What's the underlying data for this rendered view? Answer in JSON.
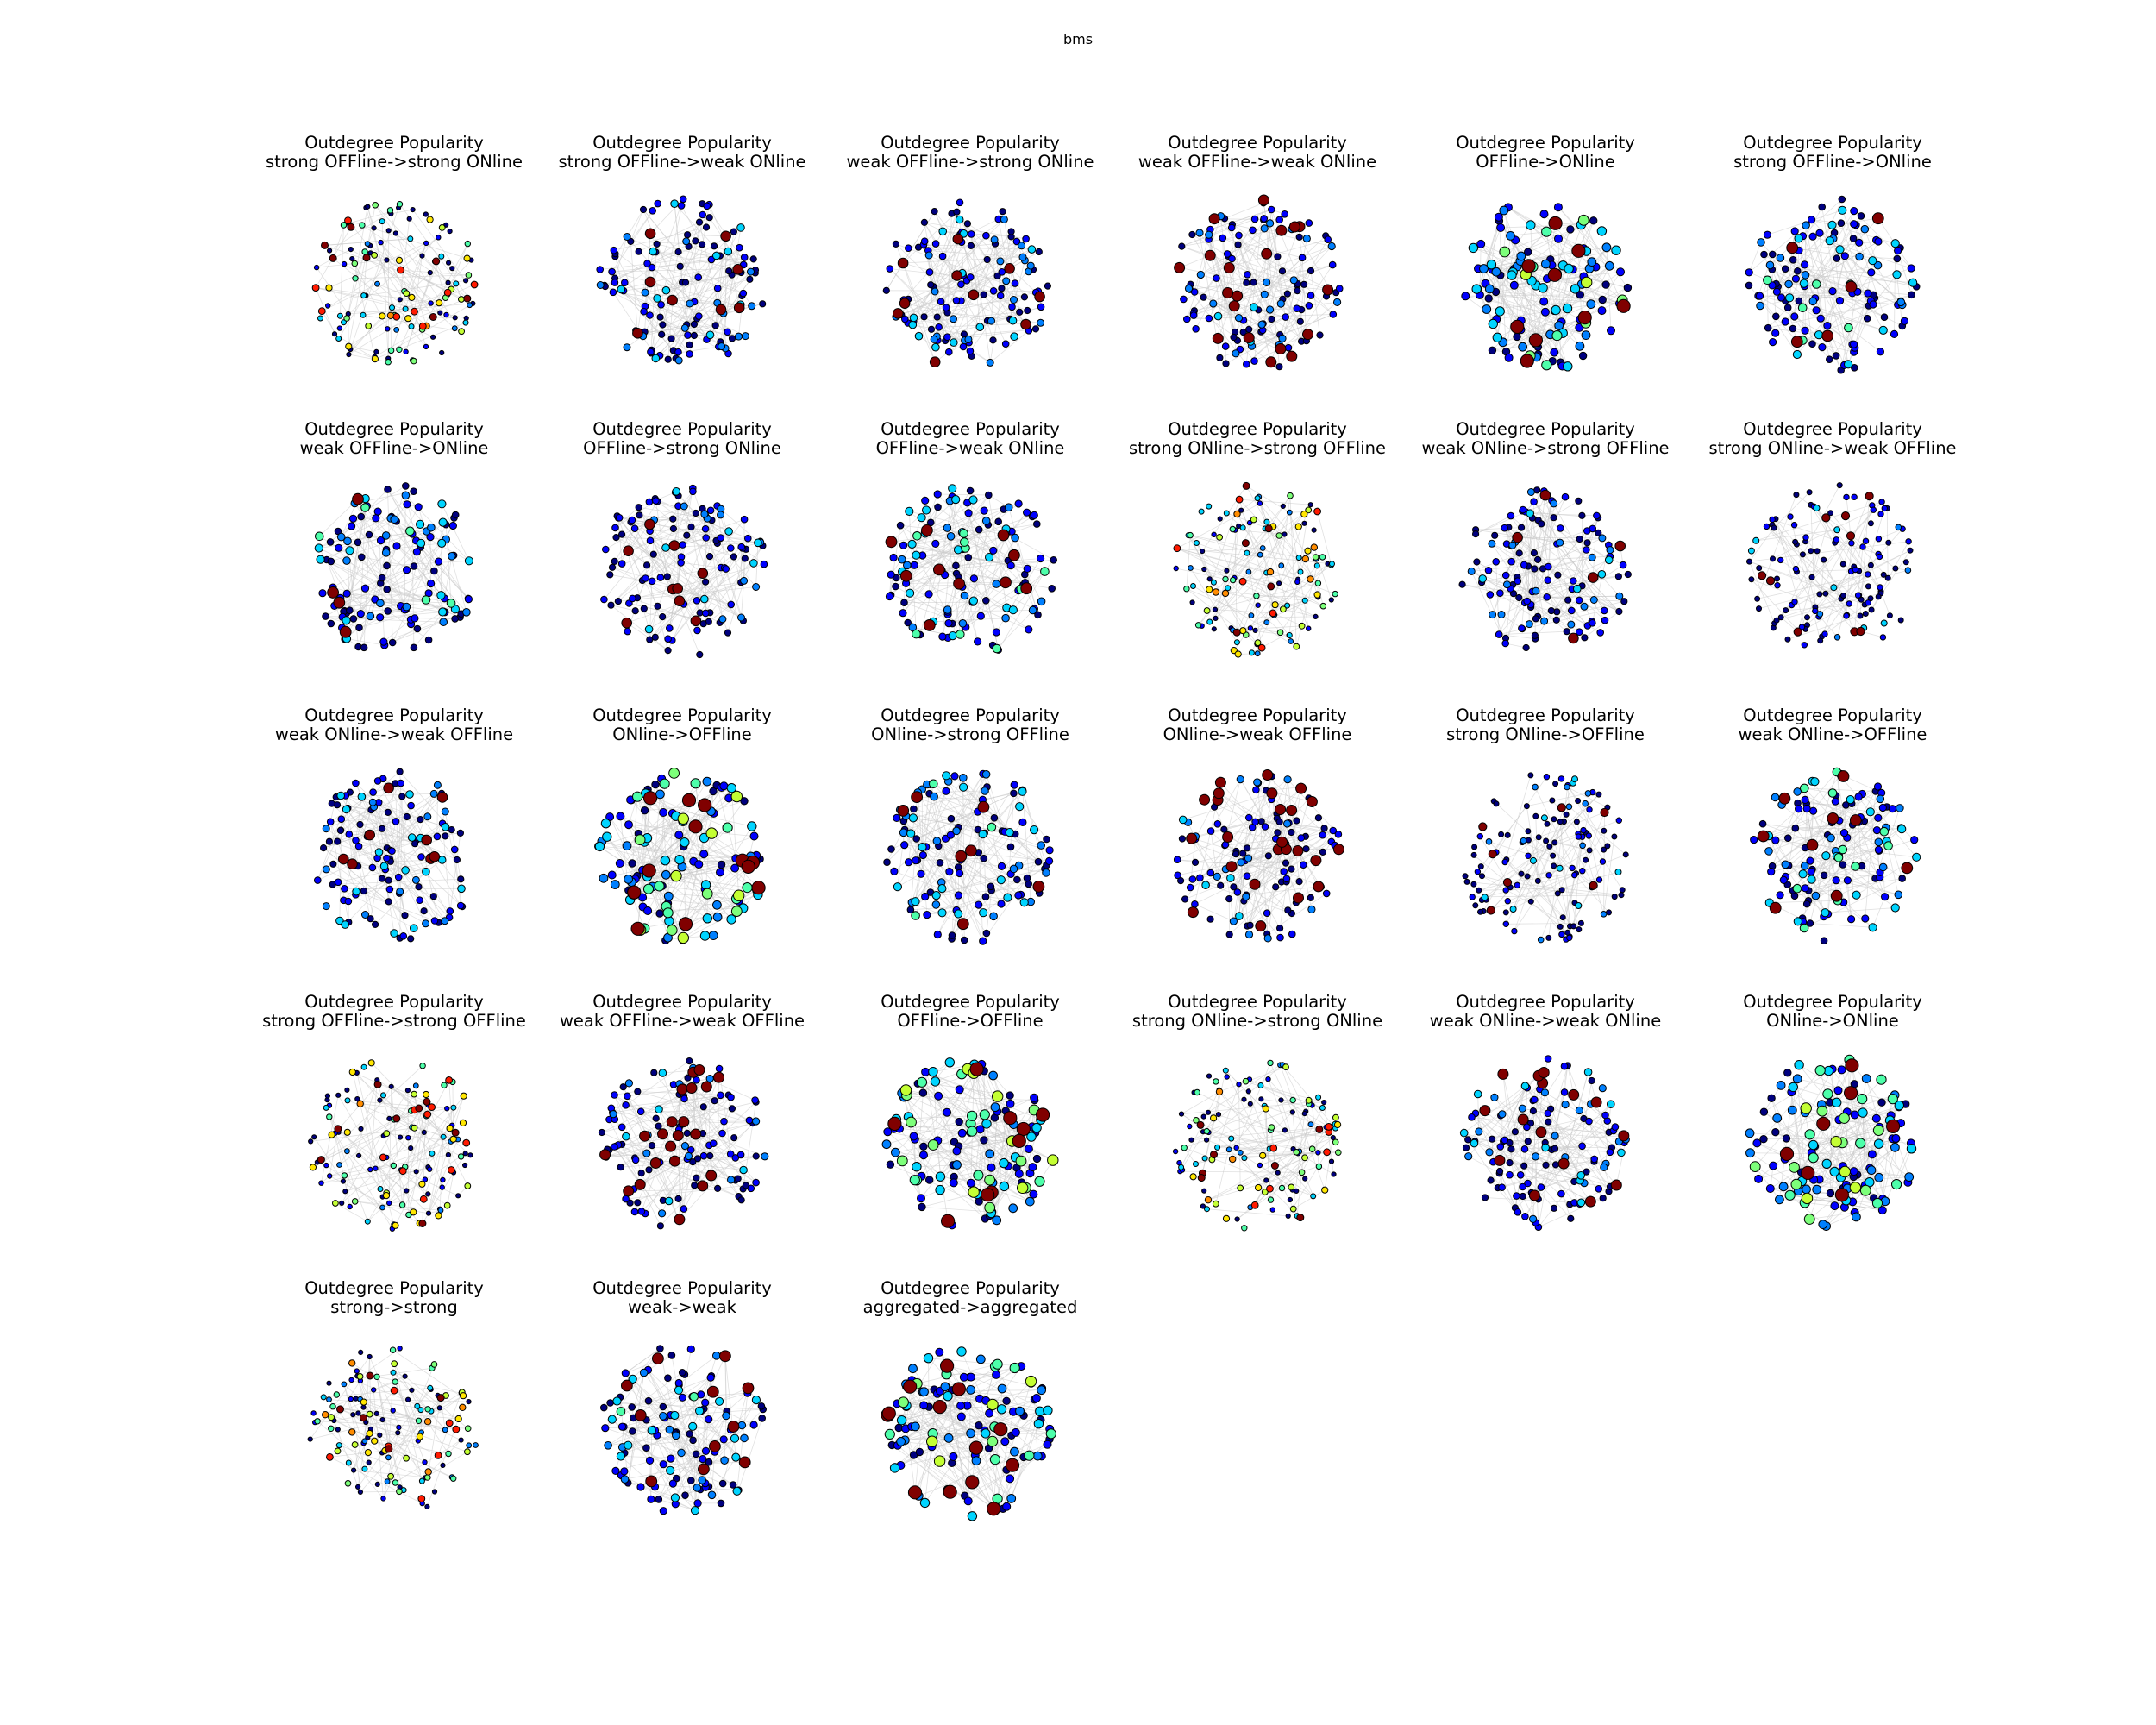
{
  "figure": {
    "title": "bms"
  },
  "colormap": [
    "#00007f",
    "#0000ff",
    "#0080ff",
    "#00d4ff",
    "#4dffaa",
    "#7dff7a",
    "#c4ff33",
    "#ffe600",
    "#ff8c00",
    "#ff1a00",
    "#800000"
  ],
  "edge_color": "#c8c8c8",
  "node_outline_color": "#000000",
  "panels": [
    {
      "line1": "Outdegree Popularity",
      "line2": "strong OFFline->strong ONline",
      "profile": "small-mixed",
      "seed": 11
    },
    {
      "line1": "Outdegree Popularity",
      "line2": "strong OFFline->weak ONline",
      "profile": "mostly-dark",
      "seed": 12
    },
    {
      "line1": "Outdegree Popularity",
      "line2": "weak OFFline->strong ONline",
      "profile": "mostly-dark",
      "seed": 13
    },
    {
      "line1": "Outdegree Popularity",
      "line2": "weak OFFline->weak ONline",
      "profile": "dark-red",
      "seed": 14
    },
    {
      "line1": "Outdegree Popularity",
      "line2": "OFFline->ONline",
      "profile": "rich",
      "seed": 15
    },
    {
      "line1": "Outdegree Popularity",
      "line2": "strong OFFline->ONline",
      "profile": "dark-cyan",
      "seed": 16
    },
    {
      "line1": "Outdegree Popularity",
      "line2": "weak OFFline->ONline",
      "profile": "dark-cyan",
      "seed": 21
    },
    {
      "line1": "Outdegree Popularity",
      "line2": "OFFline->strong ONline",
      "profile": "mostly-dark",
      "seed": 22
    },
    {
      "line1": "Outdegree Popularity",
      "line2": "OFFline->weak ONline",
      "profile": "dark-cyan",
      "seed": 23
    },
    {
      "line1": "Outdegree Popularity",
      "line2": "strong ONline->strong OFFline",
      "profile": "small-mixed",
      "seed": 24
    },
    {
      "line1": "Outdegree Popularity",
      "line2": "weak ONline->strong OFFline",
      "profile": "mostly-dark",
      "seed": 25
    },
    {
      "line1": "Outdegree Popularity",
      "line2": "strong ONline->weak OFFline",
      "profile": "sparse-dark",
      "seed": 26
    },
    {
      "line1": "Outdegree Popularity",
      "line2": "weak ONline->weak OFFline",
      "profile": "mostly-dark",
      "seed": 31
    },
    {
      "line1": "Outdegree Popularity",
      "line2": "ONline->OFFline",
      "profile": "rich",
      "seed": 32
    },
    {
      "line1": "Outdegree Popularity",
      "line2": "ONline->strong OFFline",
      "profile": "dark-cyan",
      "seed": 33
    },
    {
      "line1": "Outdegree Popularity",
      "line2": "ONline->weak OFFline",
      "profile": "dark-red",
      "seed": 34
    },
    {
      "line1": "Outdegree Popularity",
      "line2": "strong ONline->OFFline",
      "profile": "sparse-dark",
      "seed": 35
    },
    {
      "line1": "Outdegree Popularity",
      "line2": "weak ONline->OFFline",
      "profile": "dark-cyan",
      "seed": 36
    },
    {
      "line1": "Outdegree Popularity",
      "line2": "strong OFFline->strong OFFline",
      "profile": "small-mixed",
      "seed": 41
    },
    {
      "line1": "Outdegree Popularity",
      "line2": "weak OFFline->weak OFFline",
      "profile": "dark-red",
      "seed": 42
    },
    {
      "line1": "Outdegree Popularity",
      "line2": "OFFline->OFFline",
      "profile": "rich",
      "seed": 43
    },
    {
      "line1": "Outdegree Popularity",
      "line2": "strong ONline->strong ONline",
      "profile": "small-mixed",
      "seed": 44
    },
    {
      "line1": "Outdegree Popularity",
      "line2": "weak ONline->weak ONline",
      "profile": "dark-red",
      "seed": 45
    },
    {
      "line1": "Outdegree Popularity",
      "line2": "ONline->ONline",
      "profile": "rich",
      "seed": 46
    },
    {
      "line1": "Outdegree Popularity",
      "line2": "strong->strong",
      "profile": "small-mixed",
      "seed": 51
    },
    {
      "line1": "Outdegree Popularity",
      "line2": "weak->weak",
      "profile": "dark-cyan",
      "seed": 52
    },
    {
      "line1": "Outdegree Popularity",
      "line2": "aggregated->aggregated",
      "profile": "rich",
      "seed": 53
    }
  ]
}
